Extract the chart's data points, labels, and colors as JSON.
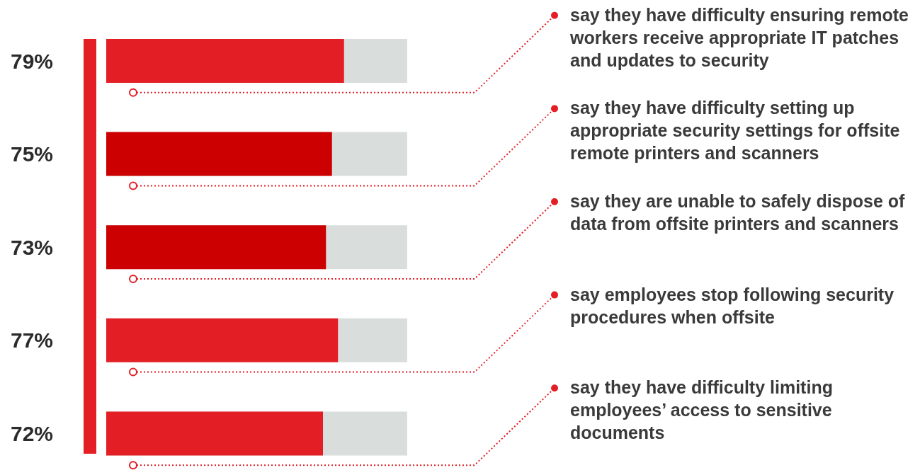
{
  "chart_data": {
    "type": "bar",
    "orientation": "horizontal",
    "categories": [
      "say they have difficulty ensuring remote workers receive appropriate IT patches and updates to security",
      "say they have difficulty setting up appropriate security settings for offsite remote printers and scanners",
      "say they are unable to safely dispose of data from offsite printers and scanners",
      "say employees stop following security procedures when offsite",
      "say they have difficulty limiting employees’ access to sensitive documents"
    ],
    "values": [
      79,
      75,
      73,
      77,
      72
    ],
    "colors": [
      "#e31e24",
      "#cc0000",
      "#cc0000",
      "#e31e24",
      "#e31e24"
    ],
    "value_labels": [
      "79%",
      "75%",
      "73%",
      "77%",
      "72%"
    ],
    "xlim": [
      0,
      100
    ]
  }
}
